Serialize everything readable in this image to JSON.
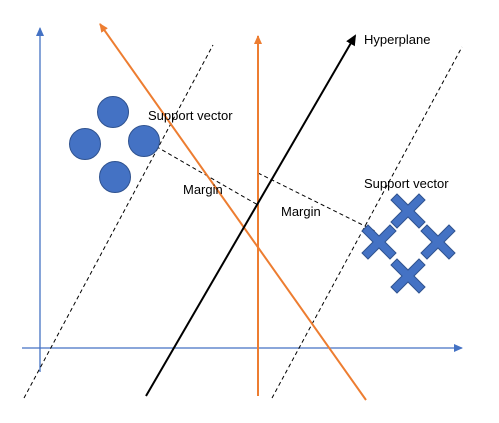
{
  "labels": {
    "hyperplane": "Hyperplane",
    "support_vector_left": "Support vector",
    "support_vector_right": "Support vector",
    "margin_left": "Margin",
    "margin_right": "Margin"
  },
  "colors": {
    "axes": "#4472C4",
    "class_a": "#4472C4",
    "class_b": "#4472C4",
    "orange_lines": "#ED7D31",
    "hyperplane": "#000000",
    "dashed": "#000000"
  },
  "points": {
    "class_a_shape": "circle",
    "class_b_shape": "cross",
    "class_a_count": 4,
    "class_b_count": 4
  }
}
